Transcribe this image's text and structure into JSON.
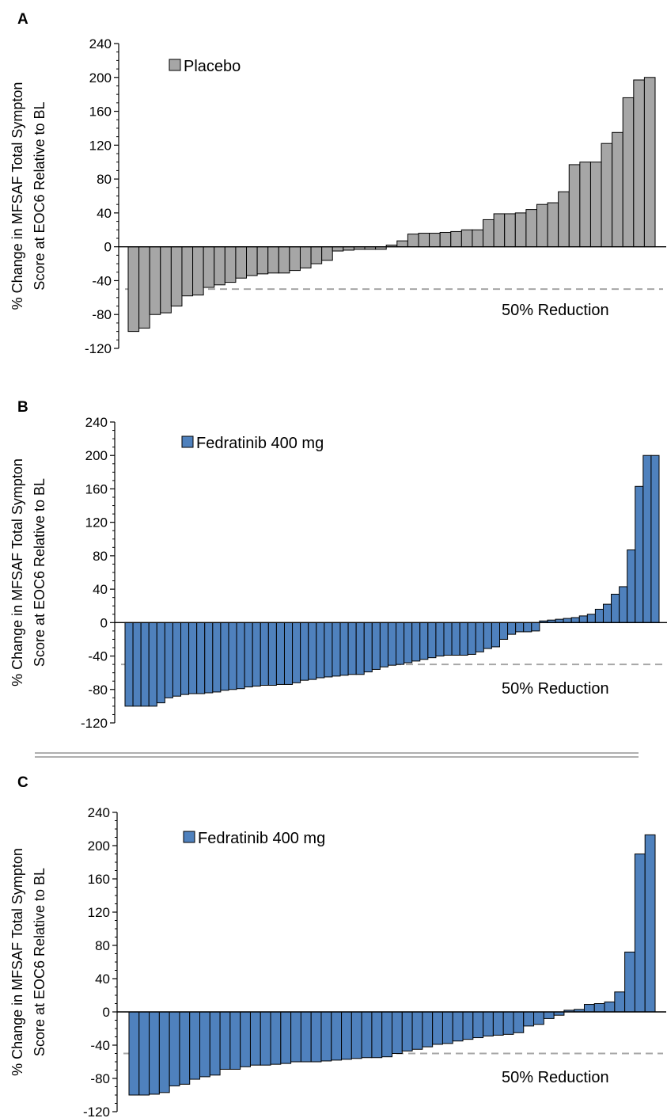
{
  "chart_data": [
    {
      "panel": "A",
      "type": "bar",
      "ylabel_lines": [
        "% Change in MFSAF Total Sympton",
        "Score at EOC6 Relative to BL"
      ],
      "ylim": [
        -120,
        240
      ],
      "yticks": [
        240,
        200,
        160,
        120,
        80,
        40,
        0,
        -40,
        -80,
        -120
      ],
      "legend": {
        "label": "Placebo",
        "placement": "top-left"
      },
      "series": [
        {
          "name": "Placebo",
          "color": "#a6a6a6",
          "values": [
            -100,
            -96,
            -80,
            -78,
            -70,
            -58,
            -57,
            -48,
            -45,
            -42,
            -37,
            -34,
            -32,
            -31,
            -31,
            -28,
            -25,
            -20,
            -16,
            -5,
            -4,
            -3,
            -3,
            -3,
            2,
            7,
            15,
            16,
            16,
            17,
            18,
            20,
            20,
            32,
            39,
            39,
            40,
            44,
            50,
            52,
            65,
            97,
            100,
            100,
            122,
            135,
            176,
            197,
            200
          ]
        }
      ],
      "reference_line": {
        "value": -50,
        "label": "50% Reduction"
      },
      "grid": false
    },
    {
      "panel": "B",
      "type": "bar",
      "ylabel_lines": [
        "% Change in MFSAF Total Sympton",
        "Score at EOC6 Relative to BL"
      ],
      "ylim": [
        -120,
        240
      ],
      "yticks": [
        240,
        200,
        160,
        120,
        80,
        40,
        0,
        -40,
        -80,
        -120
      ],
      "legend": {
        "label": "Fedratinib 400 mg",
        "placement": "top-left"
      },
      "series": [
        {
          "name": "Fedratinib 400 mg",
          "color": "#4f81bd",
          "values": [
            -100,
            -100,
            -100,
            -100,
            -96,
            -90,
            -88,
            -86,
            -85,
            -85,
            -84,
            -83,
            -81,
            -80,
            -79,
            -77,
            -76,
            -75,
            -75,
            -74,
            -74,
            -72,
            -69,
            -68,
            -66,
            -65,
            -64,
            -63,
            -62,
            -62,
            -59,
            -56,
            -53,
            -51,
            -50,
            -48,
            -46,
            -44,
            -42,
            -40,
            -39,
            -39,
            -39,
            -38,
            -35,
            -31,
            -29,
            -20,
            -14,
            -11,
            -11,
            -10,
            2,
            3,
            4,
            5,
            6,
            8,
            10,
            16,
            22,
            34,
            43,
            87,
            163,
            200,
            200
          ]
        }
      ],
      "reference_line": {
        "value": -50,
        "label": "50% Reduction"
      },
      "grid": false
    },
    {
      "panel": "C",
      "type": "bar",
      "ylabel_lines": [
        "% Change in MFSAF Total Sympton",
        "Score at EOC6  Relative to BL"
      ],
      "ylim": [
        -120,
        240
      ],
      "yticks": [
        240,
        200,
        160,
        120,
        80,
        40,
        0,
        -40,
        -80,
        -120
      ],
      "legend": {
        "label": "Fedratinib 400 mg",
        "placement": "top-left"
      },
      "series": [
        {
          "name": "Fedratinib 400 mg",
          "color": "#4f81bd",
          "values": [
            -100,
            -100,
            -99,
            -97,
            -89,
            -87,
            -81,
            -78,
            -76,
            -69,
            -69,
            -66,
            -64,
            -64,
            -63,
            -62,
            -60,
            -60,
            -60,
            -59,
            -58,
            -57,
            -56,
            -55,
            -55,
            -54,
            -50,
            -47,
            -45,
            -42,
            -39,
            -38,
            -35,
            -33,
            -31,
            -29,
            -28,
            -27,
            -25,
            -17,
            -15,
            -8,
            -4,
            2,
            3,
            9,
            10,
            12,
            24,
            72,
            190,
            213
          ]
        }
      ],
      "reference_line": {
        "value": -50,
        "label": "50% Reduction"
      },
      "grid": false
    }
  ]
}
